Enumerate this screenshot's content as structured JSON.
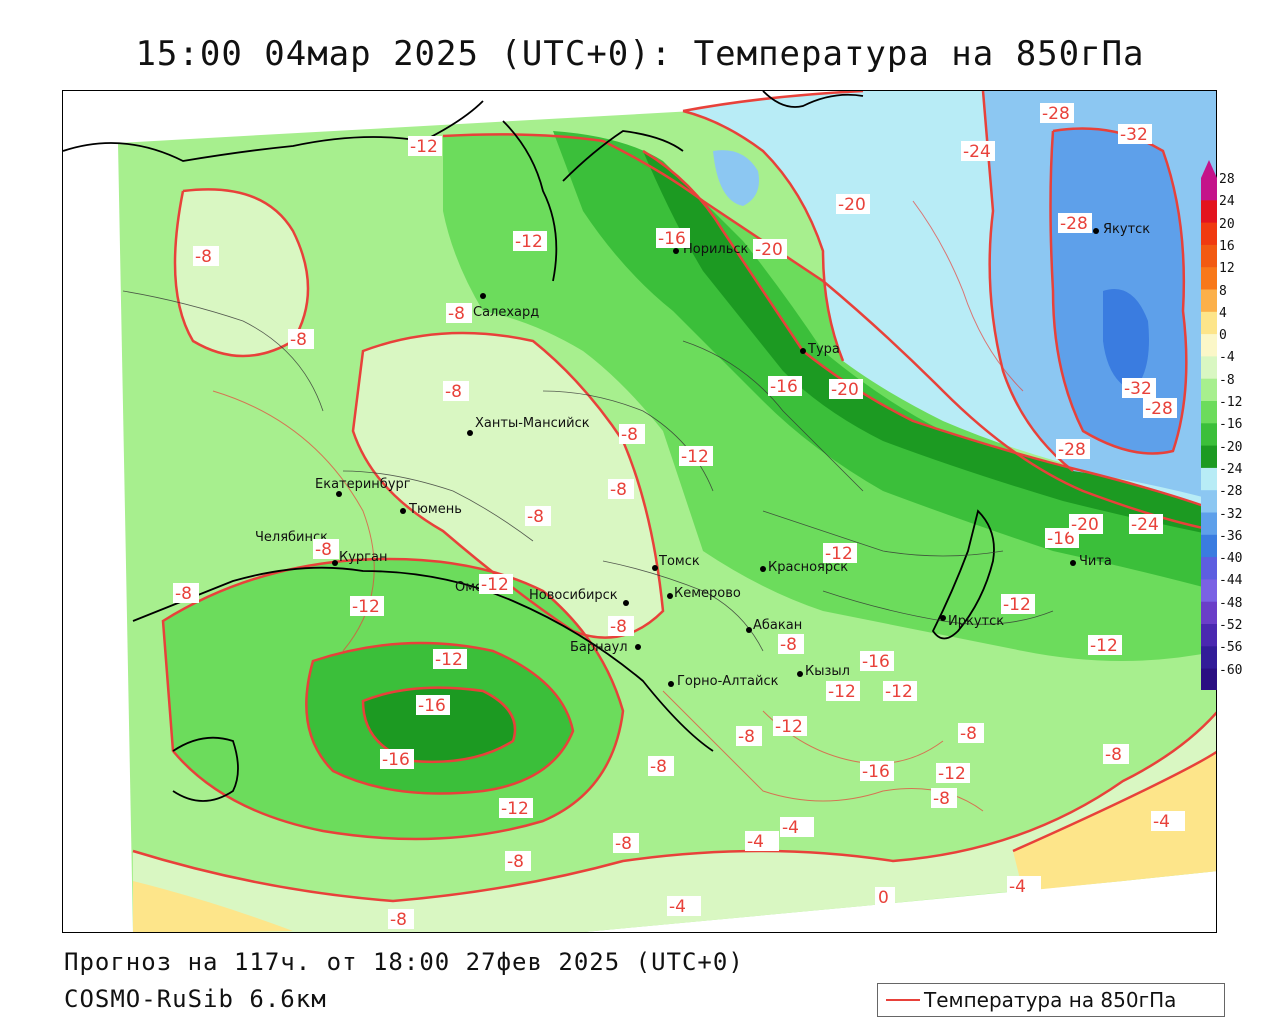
{
  "title": "15:00 04мар 2025 (UTC+0): Температура на 850гПа",
  "forecast_line": "Прогноз на 117ч. от 18:00 27фев 2025 (UTC+0)",
  "model_line": "COSMO-RuSib 6.6км",
  "legend_label": "Температура на 850гПа",
  "colors": {
    "isoline": "#e8413a",
    "levels": {
      "28": "#c4138a",
      "24": "#e3141e",
      "20": "#f03a10",
      "16": "#f25a12",
      "12": "#f8781a",
      "8": "#fbb04a",
      "4": "#fde58a",
      "0": "#fbf7c8",
      "-4": "#d9f7c2",
      "-8": "#a7ef8e",
      "-12": "#6cdc5c",
      "-16": "#3bbf3a",
      "-20": "#1c9a22",
      "-24": "#b8ecf6",
      "-28": "#8cc7f2",
      "-32": "#5ea0ea",
      "-36": "#3a7ce0",
      "-40": "#5d5ee0",
      "-44": "#7a62e4",
      "-48": "#6a3ec8",
      "-52": "#4a28b0",
      "-56": "#321c98",
      "-60": "#2a0f82"
    }
  },
  "colorbar": {
    "ticks": [
      "28",
      "24",
      "20",
      "16",
      "12",
      "8",
      "4",
      "0",
      "-4",
      "-8",
      "-12",
      "-16",
      "-20",
      "-24",
      "-28",
      "-32",
      "-36",
      "-40",
      "-44",
      "-48",
      "-52",
      "-56",
      "-60"
    ]
  },
  "cities": [
    {
      "name": "Салехард"
    },
    {
      "name": "Норильск"
    },
    {
      "name": "Якутск"
    },
    {
      "name": "Тура"
    },
    {
      "name": "Ханты-Мансийск"
    },
    {
      "name": "Екатеринбург"
    },
    {
      "name": "Тюмень"
    },
    {
      "name": "Челябинск"
    },
    {
      "name": "Курган"
    },
    {
      "name": "Омск"
    },
    {
      "name": "Новосибирск"
    },
    {
      "name": "Томск"
    },
    {
      "name": "Кемерово"
    },
    {
      "name": "Красноярск"
    },
    {
      "name": "Барнаул"
    },
    {
      "name": "Абакан"
    },
    {
      "name": "Кызыл"
    },
    {
      "name": "Горно-Алтайск"
    },
    {
      "name": "Иркутск"
    },
    {
      "name": "Чита"
    }
  ],
  "isotherm_labels": [
    "-8",
    "-12",
    "-16",
    "-20",
    "-24",
    "-28",
    "-32",
    "-4",
    "0"
  ]
}
